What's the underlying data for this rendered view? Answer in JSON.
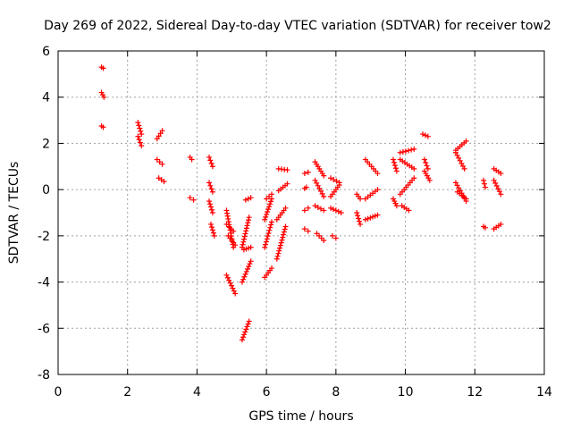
{
  "chart_data": {
    "type": "scatter",
    "title": "Day 269 of 2022, Sidereal Day-to-day VTEC variation (SDTVAR) for receiver tow2",
    "xlabel": "GPS time / hours",
    "ylabel": "SDTVAR / TECUs",
    "xlim": [
      0,
      14
    ],
    "ylim": [
      -8,
      6
    ],
    "xticks": [
      "0",
      "2",
      "4",
      "6",
      "8",
      "10",
      "12",
      "14"
    ],
    "yticks": [
      "-8",
      "-6",
      "-4",
      "-2",
      "0",
      "2",
      "4",
      "6"
    ],
    "grid": true,
    "marker": "+",
    "color": "#ff0000",
    "segments": [
      {
        "x": [
          1.25,
          1.3
        ],
        "y": [
          5.3,
          5.25
        ]
      },
      {
        "x": [
          1.25,
          1.32
        ],
        "y": [
          4.2,
          4.0
        ]
      },
      {
        "x": [
          1.25,
          1.3
        ],
        "y": [
          2.75,
          2.7
        ]
      },
      {
        "x": [
          2.3,
          2.4
        ],
        "y": [
          2.9,
          2.4
        ]
      },
      {
        "x": [
          2.3,
          2.4
        ],
        "y": [
          2.3,
          1.9
        ]
      },
      {
        "x": [
          2.85,
          3.0
        ],
        "y": [
          2.2,
          2.55
        ]
      },
      {
        "x": [
          2.85,
          3.0
        ],
        "y": [
          1.3,
          1.1
        ]
      },
      {
        "x": [
          2.9,
          3.05
        ],
        "y": [
          0.5,
          0.35
        ]
      },
      {
        "x": [
          3.8,
          3.85
        ],
        "y": [
          1.4,
          1.3
        ]
      },
      {
        "x": [
          3.8,
          3.9
        ],
        "y": [
          -0.35,
          -0.45
        ]
      },
      {
        "x": [
          4.35,
          4.45
        ],
        "y": [
          1.4,
          1.0
        ]
      },
      {
        "x": [
          4.35,
          4.45
        ],
        "y": [
          0.3,
          -0.1
        ]
      },
      {
        "x": [
          4.35,
          4.45
        ],
        "y": [
          -0.5,
          -1.0
        ]
      },
      {
        "x": [
          4.4,
          4.5
        ],
        "y": [
          -1.5,
          -2.0
        ]
      },
      {
        "x": [
          4.85,
          5.05
        ],
        "y": [
          -0.9,
          -2.5
        ]
      },
      {
        "x": [
          4.85,
          5.05
        ],
        "y": [
          -1.5,
          -1.8
        ]
      },
      {
        "x": [
          4.9,
          5.1
        ],
        "y": [
          -2.0,
          -2.4
        ]
      },
      {
        "x": [
          4.85,
          5.1
        ],
        "y": [
          -3.7,
          -4.5
        ]
      },
      {
        "x": [
          5.3,
          5.5
        ],
        "y": [
          -6.5,
          -5.7
        ]
      },
      {
        "x": [
          5.3,
          5.55
        ],
        "y": [
          -4.0,
          -3.1
        ]
      },
      {
        "x": [
          5.3,
          5.5
        ],
        "y": [
          -2.5,
          -1.2
        ]
      },
      {
        "x": [
          5.35,
          5.55
        ],
        "y": [
          -2.6,
          -2.5
        ]
      },
      {
        "x": [
          5.4,
          5.55
        ],
        "y": [
          -0.45,
          -0.35
        ]
      },
      {
        "x": [
          5.95,
          6.15
        ],
        "y": [
          -3.8,
          -3.4
        ]
      },
      {
        "x": [
          5.95,
          6.15
        ],
        "y": [
          -2.5,
          -1.4
        ]
      },
      {
        "x": [
          5.95,
          6.15
        ],
        "y": [
          -1.3,
          -0.4
        ]
      },
      {
        "x": [
          6.0,
          6.15
        ],
        "y": [
          -0.4,
          -0.2
        ]
      },
      {
        "x": [
          6.3,
          6.55
        ],
        "y": [
          -3.0,
          -1.6
        ]
      },
      {
        "x": [
          6.3,
          6.55
        ],
        "y": [
          -1.3,
          -0.8
        ]
      },
      {
        "x": [
          6.35,
          6.6
        ],
        "y": [
          -0.05,
          0.25
        ]
      },
      {
        "x": [
          6.35,
          6.6
        ],
        "y": [
          0.9,
          0.85
        ]
      },
      {
        "x": [
          7.1,
          7.2
        ],
        "y": [
          0.7,
          0.75
        ]
      },
      {
        "x": [
          7.1,
          7.15
        ],
        "y": [
          0.05,
          0.1
        ]
      },
      {
        "x": [
          7.1,
          7.2
        ],
        "y": [
          -0.9,
          -0.8
        ]
      },
      {
        "x": [
          7.1,
          7.2
        ],
        "y": [
          -1.7,
          -1.8
        ]
      },
      {
        "x": [
          7.4,
          7.65
        ],
        "y": [
          1.2,
          0.6
        ]
      },
      {
        "x": [
          7.4,
          7.65
        ],
        "y": [
          0.4,
          -0.3
        ]
      },
      {
        "x": [
          7.4,
          7.65
        ],
        "y": [
          -0.7,
          -0.9
        ]
      },
      {
        "x": [
          7.45,
          7.65
        ],
        "y": [
          -1.9,
          -2.2
        ]
      },
      {
        "x": [
          7.85,
          8.1
        ],
        "y": [
          0.5,
          0.3
        ]
      },
      {
        "x": [
          7.85,
          8.1
        ],
        "y": [
          -0.3,
          0.2
        ]
      },
      {
        "x": [
          7.85,
          8.15
        ],
        "y": [
          -0.8,
          -1.0
        ]
      },
      {
        "x": [
          7.9,
          8.0
        ],
        "y": [
          -2.0,
          -2.1
        ]
      },
      {
        "x": [
          8.6,
          8.7
        ],
        "y": [
          -0.2,
          -0.4
        ]
      },
      {
        "x": [
          8.6,
          8.7
        ],
        "y": [
          -1.0,
          -1.5
        ]
      },
      {
        "x": [
          8.85,
          9.2
        ],
        "y": [
          1.3,
          0.7
        ]
      },
      {
        "x": [
          8.85,
          9.2
        ],
        "y": [
          -0.4,
          0.0
        ]
      },
      {
        "x": [
          8.85,
          9.2
        ],
        "y": [
          -1.3,
          -1.1
        ]
      },
      {
        "x": [
          9.65,
          9.75
        ],
        "y": [
          1.3,
          0.8
        ]
      },
      {
        "x": [
          9.65,
          9.75
        ],
        "y": [
          -0.4,
          -0.7
        ]
      },
      {
        "x": [
          9.85,
          10.25
        ],
        "y": [
          1.6,
          1.75
        ]
      },
      {
        "x": [
          9.85,
          10.25
        ],
        "y": [
          1.3,
          0.9
        ]
      },
      {
        "x": [
          9.85,
          10.25
        ],
        "y": [
          -0.2,
          0.5
        ]
      },
      {
        "x": [
          9.9,
          10.1
        ],
        "y": [
          -0.7,
          -0.9
        ]
      },
      {
        "x": [
          10.5,
          10.65
        ],
        "y": [
          2.4,
          2.3
        ]
      },
      {
        "x": [
          10.55,
          10.65
        ],
        "y": [
          1.3,
          0.9
        ]
      },
      {
        "x": [
          10.55,
          10.7
        ],
        "y": [
          0.8,
          0.4
        ]
      },
      {
        "x": [
          11.45,
          11.75
        ],
        "y": [
          1.7,
          2.1
        ]
      },
      {
        "x": [
          11.45,
          11.7
        ],
        "y": [
          1.6,
          0.9
        ]
      },
      {
        "x": [
          11.45,
          11.75
        ],
        "y": [
          0.3,
          -0.5
        ]
      },
      {
        "x": [
          11.5,
          11.75
        ],
        "y": [
          -0.1,
          -0.4
        ]
      },
      {
        "x": [
          12.25,
          12.3
        ],
        "y": [
          0.4,
          0.1
        ]
      },
      {
        "x": [
          12.25,
          12.3
        ],
        "y": [
          -1.6,
          -1.65
        ]
      },
      {
        "x": [
          12.55,
          12.75
        ],
        "y": [
          0.9,
          0.7
        ]
      },
      {
        "x": [
          12.55,
          12.75
        ],
        "y": [
          0.4,
          -0.2
        ]
      },
      {
        "x": [
          12.55,
          12.75
        ],
        "y": [
          -1.7,
          -1.5
        ]
      }
    ]
  }
}
